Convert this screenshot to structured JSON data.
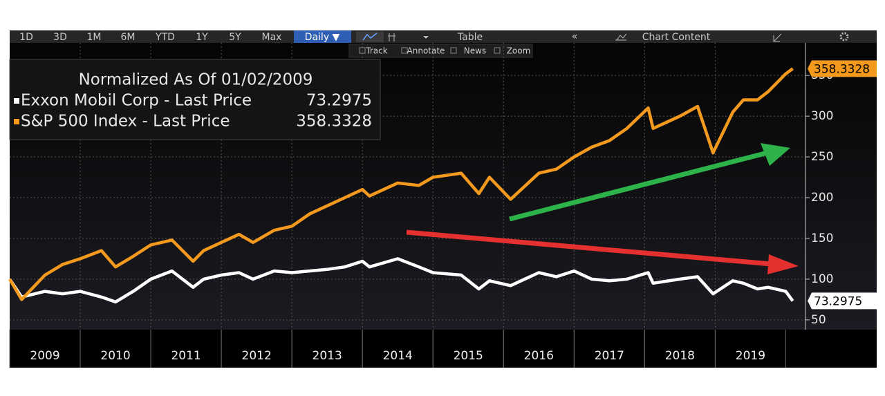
{
  "toolbar": {
    "ranges": [
      "1D",
      "3D",
      "1M",
      "6M",
      "YTD",
      "1Y",
      "5Y",
      "Max"
    ],
    "frequency": "Daily ▼",
    "table": "Table",
    "collapse": "«",
    "content": "Chart Content"
  },
  "subtoolbar": [
    "Track",
    "Annotate",
    "News",
    "Zoom"
  ],
  "chart_data": {
    "type": "line",
    "legend_title": "Normalized As Of 01/02/2009",
    "x": [
      2009.0,
      2009.17,
      2009.5,
      2009.75,
      2010.0,
      2010.3,
      2010.5,
      2010.75,
      2011.0,
      2011.3,
      2011.6,
      2011.75,
      2012.0,
      2012.25,
      2012.45,
      2012.75,
      2013.0,
      2013.25,
      2013.5,
      2013.75,
      2014.0,
      2014.1,
      2014.5,
      2014.8,
      2015.0,
      2015.4,
      2015.65,
      2015.8,
      2016.1,
      2016.5,
      2016.75,
      2017.0,
      2017.25,
      2017.5,
      2017.75,
      2018.05,
      2018.12,
      2018.5,
      2018.75,
      2018.97,
      2019.25,
      2019.4,
      2019.6,
      2019.75,
      2020.0,
      2020.1
    ],
    "series": [
      {
        "name": "Exxon Mobil Corp - Last Price",
        "color": "#ffffff",
        "values": [
          100,
          78,
          85,
          82,
          85,
          78,
          72,
          85,
          100,
          110,
          90,
          100,
          105,
          108,
          100,
          110,
          108,
          110,
          112,
          115,
          122,
          115,
          125,
          115,
          108,
          105,
          88,
          98,
          92,
          108,
          103,
          110,
          100,
          98,
          100,
          108,
          95,
          100,
          103,
          82,
          98,
          95,
          88,
          90,
          85,
          73.2975
        ]
      },
      {
        "name": "S&P 500 Index - Last Price",
        "color": "#f39a1e",
        "values": [
          100,
          75,
          105,
          118,
          125,
          135,
          115,
          128,
          142,
          148,
          122,
          135,
          145,
          155,
          145,
          160,
          165,
          180,
          190,
          200,
          210,
          202,
          218,
          215,
          225,
          230,
          205,
          225,
          198,
          230,
          235,
          250,
          262,
          270,
          285,
          310,
          285,
          300,
          312,
          255,
          305,
          320,
          320,
          330,
          352,
          358.3328
        ]
      }
    ],
    "xlim": [
      2009,
      2020.28
    ],
    "xticks": [
      2009,
      2010,
      2011,
      2012,
      2013,
      2014,
      2015,
      2016,
      2017,
      2018,
      2019
    ],
    "ylim": [
      38,
      390
    ],
    "yticks": [
      50,
      100,
      150,
      200,
      250,
      300,
      350
    ],
    "grid": true,
    "legend": "upper left"
  }
}
